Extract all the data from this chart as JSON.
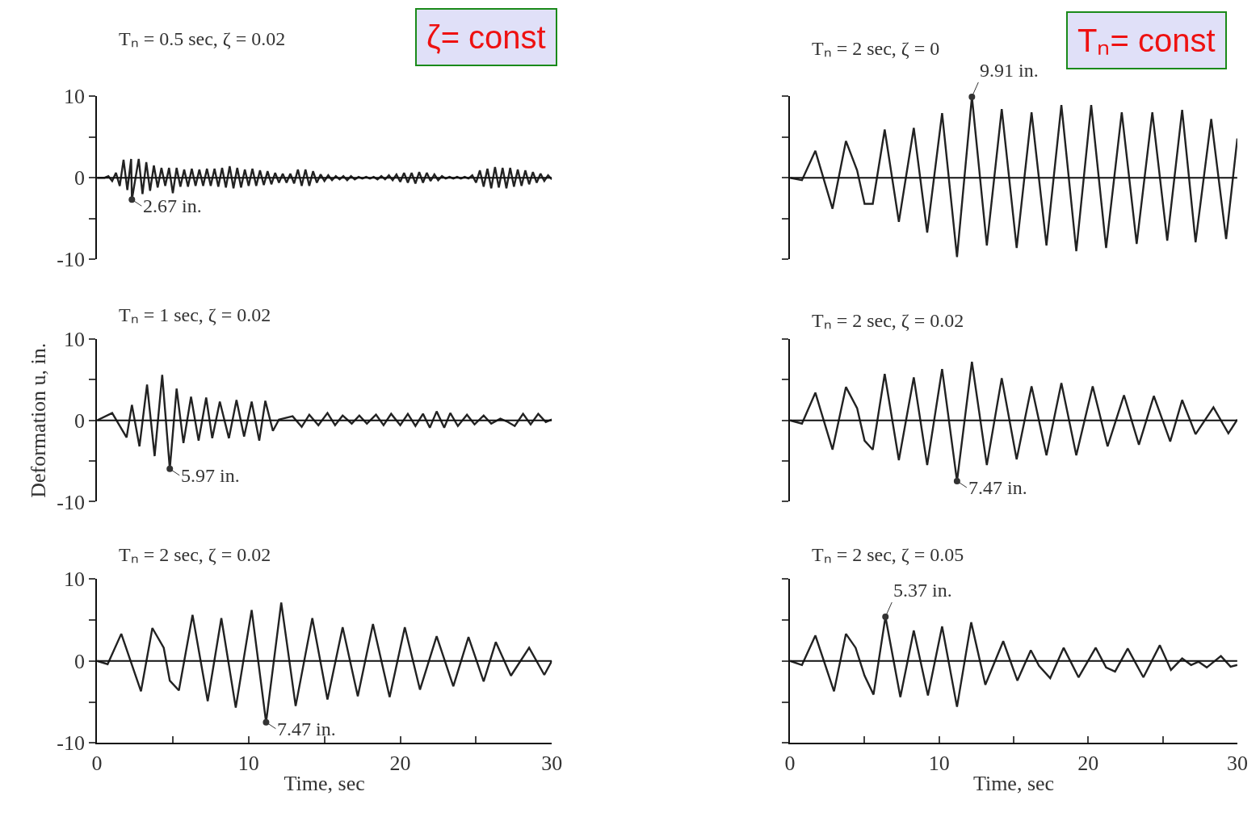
{
  "chart_data": [
    {
      "type": "line",
      "title": "Tₙ = 0.5 sec, ζ = 0.02",
      "xlim": [
        0,
        30
      ],
      "ylim": [
        -10,
        10
      ],
      "yticks": [
        -10,
        {
          "value": -5,
          "label": null
        },
        0,
        {
          "value": 5,
          "label": null
        },
        10
      ],
      "tick_labels": "y",
      "ref_lines": [
        {
          "axis": "y",
          "value": 0
        }
      ],
      "annotations": [
        "ζ= const",
        {
          "text": "2.67 in.",
          "x": 2.3,
          "y": -2.67
        }
      ],
      "series": [
        {
          "color": "#222222",
          "x": [
            0,
            0.25,
            0.5,
            0.75,
            1.0,
            1.25,
            1.5,
            1.75,
            2.0,
            2.25,
            2.3,
            2.75,
            3.0,
            3.25,
            3.5,
            3.75,
            4.0,
            4.25,
            4.5,
            4.75,
            5.0,
            5.25,
            5.5,
            5.75,
            6.0,
            6.25,
            6.5,
            6.75,
            7.0,
            7.25,
            7.5,
            7.75,
            8.0,
            8.25,
            8.5,
            8.75,
            9.0,
            9.25,
            9.5,
            9.75,
            10.0,
            10.25,
            10.5,
            10.75,
            11.0,
            11.25,
            11.5,
            11.75,
            12.0,
            12.25,
            12.5,
            12.75,
            13.0,
            13.25,
            13.5,
            13.75,
            14.0,
            14.25,
            14.5,
            14.75,
            15.0,
            15.25,
            15.5,
            15.75,
            16.0,
            16.25,
            16.5,
            16.75,
            17.0,
            17.25,
            17.5,
            17.75,
            18.0,
            18.25,
            18.5,
            18.75,
            19.0,
            19.25,
            19.5,
            19.75,
            20.0,
            20.25,
            20.5,
            20.75,
            21.0,
            21.25,
            21.5,
            21.75,
            22.0,
            22.25,
            22.5,
            22.75,
            23.0,
            23.25,
            23.5,
            23.75,
            24.0,
            24.25,
            24.5,
            24.75,
            25.0,
            25.25,
            25.5,
            25.75,
            26.0,
            26.25,
            26.5,
            26.75,
            27.0,
            27.25,
            27.5,
            27.75,
            28.0,
            28.25,
            28.5,
            28.75,
            29.0,
            29.25,
            29.5,
            29.75,
            30.0
          ],
          "values": [
            0,
            0,
            0,
            0.2,
            -0.4,
            0.6,
            -1.0,
            2.2,
            -1.5,
            2.3,
            -2.67,
            2.3,
            -2.0,
            1.9,
            -1.6,
            1.5,
            -1.2,
            1.2,
            -1.0,
            1.2,
            -1.9,
            1.2,
            -1.1,
            1.0,
            -1.1,
            1.1,
            -1.0,
            1.0,
            -1.0,
            1.1,
            -1.0,
            1.1,
            -1.1,
            1.2,
            -1.2,
            1.4,
            -1.3,
            1.2,
            -1.2,
            1.0,
            -1.0,
            1.1,
            -1.0,
            0.9,
            -0.9,
            0.8,
            -0.8,
            0.6,
            -0.6,
            0.5,
            -0.6,
            0.5,
            -0.7,
            1.0,
            -1.0,
            1.0,
            -1.0,
            0.8,
            -0.6,
            0.4,
            -0.4,
            0.3,
            -0.3,
            0.2,
            -0.2,
            0.2,
            -0.3,
            0.2,
            -0.2,
            0.1,
            -0.1,
            0.1,
            -0.1,
            0.1,
            -0.2,
            0.2,
            -0.2,
            0.3,
            -0.3,
            0.4,
            -0.5,
            0.6,
            -0.6,
            0.6,
            -0.7,
            0.7,
            -0.6,
            0.6,
            -0.4,
            0.4,
            -0.3,
            0.2,
            -0.1,
            0.1,
            -0.1,
            0.1,
            -0.1,
            0.1,
            -0.1,
            0.3,
            -0.6,
            0.9,
            -1.1,
            1.1,
            -1.3,
            1.3,
            -1.2,
            1.2,
            -1.3,
            1.2,
            -1.1,
            1.0,
            -1.0,
            0.9,
            -0.8,
            0.7,
            -0.6,
            0.5,
            -0.4,
            0.3,
            -0.2
          ]
        }
      ]
    },
    {
      "type": "line",
      "title": "Tₙ = 2 sec, ζ = 0",
      "xlim": [
        0,
        30
      ],
      "ylim": [
        -10,
        10
      ],
      "yticks": [
        {
          "value": -10,
          "label": null
        },
        {
          "value": -5,
          "label": null
        },
        {
          "value": 0,
          "label": null
        },
        {
          "value": 5,
          "label": null
        },
        {
          "value": 10,
          "label": null
        }
      ],
      "tick_labels": false,
      "ref_lines": [
        {
          "axis": "y",
          "value": 0
        }
      ],
      "annotations": [
        "Tₙ= const",
        {
          "text": "9.91 in.",
          "x": 12.2,
          "y": 9.91
        }
      ],
      "series": [
        {
          "color": "#222222",
          "x": [
            0,
            0.8,
            1.7,
            2.85,
            3.75,
            4.5,
            5.0,
            5.55,
            6.35,
            7.3,
            8.3,
            9.2,
            10.2,
            11.2,
            12.2,
            13.2,
            14.2,
            15.2,
            16.2,
            17.2,
            18.2,
            19.2,
            20.2,
            21.2,
            22.25,
            23.25,
            24.3,
            25.3,
            26.3,
            27.2,
            28.25,
            29.25,
            30
          ],
          "values": [
            0,
            -0.3,
            3.3,
            -3.8,
            4.5,
            0.9,
            -3.2,
            -3.2,
            5.9,
            -5.4,
            6.1,
            -6.7,
            7.9,
            -9.7,
            9.91,
            -8.3,
            8.4,
            -8.6,
            8.0,
            -8.3,
            8.9,
            -9.0,
            8.9,
            -8.6,
            8.0,
            -8.1,
            8.0,
            -7.7,
            8.3,
            -7.9,
            7.2,
            -7.5,
            4.8
          ]
        }
      ]
    },
    {
      "type": "line",
      "title": "Tₙ = 1 sec, ζ = 0.02",
      "ylabel": "Deformation u, in.",
      "xlim": [
        0,
        30
      ],
      "ylim": [
        -10,
        10
      ],
      "yticks": [
        -10,
        {
          "value": -5,
          "label": null
        },
        0,
        {
          "value": 5,
          "label": null
        },
        10
      ],
      "tick_labels": "y",
      "ref_lines": [
        {
          "axis": "y",
          "value": 0
        }
      ],
      "annotations": [
        {
          "text": "5.97 in.",
          "x": 4.8,
          "y": -5.97
        }
      ],
      "series": [
        {
          "color": "#222222",
          "x": [
            0,
            1.0,
            1.95,
            2.3,
            2.8,
            3.3,
            3.8,
            4.3,
            4.8,
            5.25,
            5.7,
            6.2,
            6.7,
            7.2,
            7.6,
            8.1,
            8.7,
            9.2,
            9.7,
            10.2,
            10.7,
            11.1,
            11.6,
            12.0,
            12.9,
            13.5,
            14.0,
            14.6,
            15.2,
            15.7,
            16.2,
            16.8,
            17.3,
            17.8,
            18.4,
            18.9,
            19.4,
            20.0,
            20.5,
            21.0,
            21.5,
            21.95,
            22.4,
            22.9,
            23.3,
            23.8,
            24.4,
            24.9,
            25.5,
            26.0,
            26.6,
            27.1,
            27.55,
            28.1,
            28.6,
            29.1,
            29.6,
            30
          ],
          "values": [
            0,
            0.9,
            -2.1,
            1.9,
            -3.2,
            4.4,
            -4.4,
            5.6,
            -5.97,
            3.9,
            -2.8,
            2.9,
            -2.5,
            2.8,
            -2.2,
            2.3,
            -2.2,
            2.5,
            -2.0,
            2.3,
            -2.5,
            2.4,
            -1.3,
            0.1,
            0.5,
            -0.8,
            0.7,
            -0.6,
            0.9,
            -0.6,
            0.6,
            -0.4,
            0.6,
            -0.4,
            0.7,
            -0.6,
            0.8,
            -0.6,
            0.8,
            -0.7,
            0.8,
            -0.9,
            1.1,
            -0.9,
            0.9,
            -0.7,
            0.7,
            -0.5,
            0.6,
            -0.4,
            0.2,
            -0.2,
            -0.7,
            0.8,
            -0.5,
            0.8,
            -0.2,
            0.1
          ]
        }
      ]
    },
    {
      "type": "line",
      "title": "Tₙ = 2 sec, ζ = 0.02",
      "xlim": [
        0,
        30
      ],
      "ylim": [
        -10,
        10
      ],
      "yticks": [
        {
          "value": -10,
          "label": null
        },
        {
          "value": -5,
          "label": null
        },
        {
          "value": 0,
          "label": null
        },
        {
          "value": 5,
          "label": null
        },
        {
          "value": 10,
          "label": null
        }
      ],
      "tick_labels": false,
      "ref_lines": [
        {
          "axis": "y",
          "value": 0
        }
      ],
      "annotations": [
        {
          "text": "7.47 in.",
          "x": 11.2,
          "y": -7.47
        }
      ],
      "series": [
        {
          "color": "#222222",
          "x": [
            0,
            0.8,
            1.7,
            2.85,
            3.75,
            4.5,
            5.0,
            5.55,
            6.35,
            7.3,
            8.3,
            9.2,
            10.2,
            11.2,
            12.2,
            13.2,
            14.2,
            15.2,
            16.2,
            17.2,
            18.2,
            19.2,
            20.3,
            21.3,
            22.4,
            23.4,
            24.4,
            25.5,
            26.3,
            27.2,
            28.4,
            29.4,
            30
          ],
          "values": [
            0,
            -0.4,
            3.4,
            -3.6,
            4.1,
            1.5,
            -2.5,
            -3.6,
            5.7,
            -4.9,
            5.3,
            -5.5,
            6.3,
            -7.47,
            7.2,
            -5.5,
            5.2,
            -4.8,
            4.2,
            -4.3,
            4.6,
            -4.3,
            4.2,
            -3.2,
            3.1,
            -3.0,
            3.0,
            -2.6,
            2.5,
            -1.7,
            1.6,
            -1.6,
            0.1
          ]
        }
      ]
    },
    {
      "type": "line",
      "title": "Tₙ = 2 sec, ζ = 0.02",
      "xlabel": "Time, sec",
      "xlim": [
        0,
        30
      ],
      "xticks": [
        0,
        {
          "value": 5,
          "label": null
        },
        10,
        {
          "value": 15,
          "label": null
        },
        20,
        {
          "value": 25,
          "label": null
        },
        30
      ],
      "ylim": [
        -10,
        10
      ],
      "yticks": [
        -10,
        {
          "value": -5,
          "label": null
        },
        0,
        {
          "value": 5,
          "label": null
        },
        10
      ],
      "ref_lines": [
        {
          "axis": "y",
          "value": 0
        }
      ],
      "annotations": [
        {
          "text": "7.47 in.",
          "x": 11.15,
          "y": -7.47
        }
      ],
      "series": [
        {
          "color": "#222222",
          "x": [
            0,
            0.7,
            1.6,
            2.9,
            3.65,
            4.4,
            4.8,
            5.4,
            6.3,
            7.3,
            8.2,
            9.15,
            10.2,
            11.15,
            12.15,
            13.1,
            14.2,
            15.2,
            16.2,
            17.2,
            18.2,
            19.3,
            20.3,
            21.3,
            22.4,
            23.5,
            24.5,
            25.5,
            26.3,
            27.3,
            28.5,
            29.5,
            30
          ],
          "values": [
            0,
            -0.4,
            3.3,
            -3.7,
            4.0,
            1.6,
            -2.4,
            -3.6,
            5.6,
            -4.9,
            5.2,
            -5.7,
            6.2,
            -7.47,
            7.1,
            -5.5,
            5.2,
            -4.7,
            4.1,
            -4.3,
            4.5,
            -4.4,
            4.1,
            -3.5,
            3.0,
            -3.1,
            2.9,
            -2.5,
            2.3,
            -1.8,
            1.6,
            -1.7,
            0
          ]
        }
      ]
    },
    {
      "type": "line",
      "title": "Tₙ = 2 sec, ζ = 0.05",
      "xlabel": "Time, sec",
      "xlim": [
        0,
        30
      ],
      "xticks": [
        0,
        {
          "value": 5,
          "label": null
        },
        10,
        {
          "value": 15,
          "label": null
        },
        20,
        {
          "value": 25,
          "label": null
        },
        30
      ],
      "ylim": [
        -10,
        10
      ],
      "yticks": [
        {
          "value": -10,
          "label": null
        },
        {
          "value": -5,
          "label": null
        },
        {
          "value": 0,
          "label": null
        },
        {
          "value": 5,
          "label": null
        },
        {
          "value": 10,
          "label": null
        }
      ],
      "tick_labels": "x",
      "ref_lines": [
        {
          "axis": "y",
          "value": 0
        }
      ],
      "annotations": [
        {
          "text": "5.37 in.",
          "x": 6.4,
          "y": 5.37
        }
      ],
      "series": [
        {
          "color": "#222222",
          "x": [
            0,
            0.8,
            1.7,
            2.95,
            3.75,
            4.4,
            5.0,
            5.6,
            6.4,
            7.4,
            8.3,
            9.25,
            10.2,
            11.2,
            12.15,
            13.1,
            14.3,
            15.25,
            16.15,
            16.7,
            17.45,
            18.35,
            19.35,
            20.5,
            21.2,
            21.8,
            22.65,
            23.7,
            24.8,
            25.55,
            26.3,
            26.9,
            27.4,
            27.95,
            28.9,
            29.55,
            30
          ],
          "values": [
            0,
            -0.5,
            3.1,
            -3.7,
            3.3,
            1.6,
            -1.8,
            -4.1,
            5.37,
            -4.4,
            3.7,
            -4.2,
            4.2,
            -5.6,
            4.7,
            -2.9,
            2.4,
            -2.4,
            1.3,
            -0.6,
            -2.1,
            1.6,
            -2.0,
            1.6,
            -0.8,
            -1.3,
            1.5,
            -2.0,
            1.9,
            -1.1,
            0.3,
            -0.5,
            -0.1,
            -0.8,
            0.6,
            -0.7,
            -0.5
          ]
        }
      ]
    }
  ]
}
